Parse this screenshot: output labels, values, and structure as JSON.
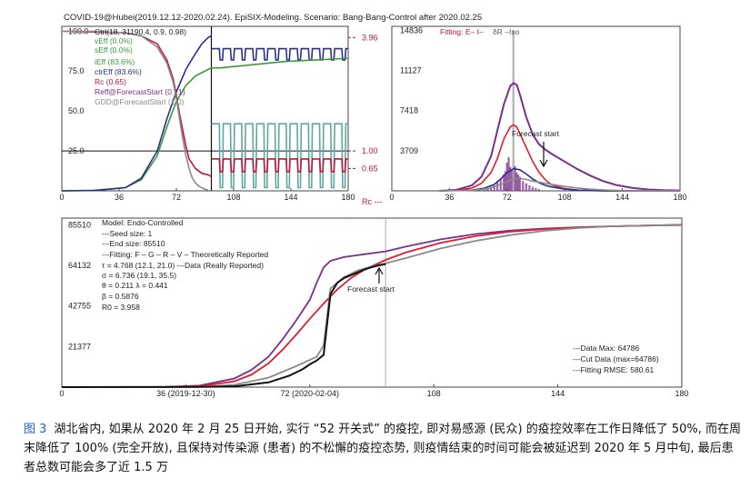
{
  "caption": {
    "label": "图 3",
    "text": "湖北省内, 如果从 2020 年 2 月 25 日开始, 实行 “52 开关式” 的疫控, 即对易感源 (民众) 的疫控效率在工作日降低了 50%, 而在周末降低了 100% (完全开放), 且保持对传染源 (患者) 的不松懈的疫控态势, 则疫情结束的时间可能会被延迟到 2020 年 5 月中旬, 最后患者总数可能会多了近 1.5 万"
  },
  "colors": {
    "purple": "#7b2f8e",
    "red": "#e01e2d",
    "blue": "#2b2f8f",
    "green": "#3a9a3a",
    "teal": "#5fa8a0",
    "crimson": "#c0143c",
    "gray": "#8a8a8a",
    "black": "#111111"
  },
  "chart_data": [
    {
      "type": "line",
      "title": "COVID-19@Hubei(2019.12.12-2020.02.24). EpiSIX-Modeling. Scenario: Bang-Bang-Control after 2020.02.25",
      "xlim": [
        0,
        180
      ],
      "x_ticks": [
        "0",
        "36",
        "72",
        "108",
        "144",
        "180"
      ],
      "ylim": [
        0,
        100
      ],
      "y_ticks": [
        "100.0",
        "75.0",
        "50.0",
        "25.0"
      ],
      "y2_ticks": [
        "3.96",
        "1.00",
        "0.65",
        "Rc ---"
      ],
      "legend": [
        "Ctrl(18, 31190.4, 0.9, 0.98)",
        "vEff (0.0%)",
        "sEff (0.0%)",
        "iEff (83.6%)",
        "ctrEff (83.6%)",
        "Rc (0.65)",
        "Reff@ForecastStart (0.71)",
        "GDD@ForecastStart (1.0)"
      ],
      "reference_lines": {
        "vertical_x": 94,
        "horizontal_y": 25.0
      },
      "series": [
        {
          "name": "iEff (83.6%)",
          "color": "green",
          "x": [
            0,
            20,
            40,
            50,
            60,
            66,
            72,
            78,
            84,
            88,
            92,
            94,
            100,
            110,
            120,
            130,
            140,
            150,
            160,
            170,
            180
          ],
          "y": [
            0,
            0.2,
            2,
            7,
            22,
            40,
            56,
            66,
            72,
            74,
            76,
            77,
            77,
            78,
            79,
            80,
            81,
            81.5,
            82,
            82.5,
            83
          ]
        },
        {
          "name": "ctrEff (83.6%)",
          "color": "blue",
          "x": [
            0,
            20,
            40,
            50,
            60,
            66,
            72,
            78,
            84,
            88,
            92,
            94
          ],
          "y": [
            0,
            0.2,
            2,
            8,
            25,
            45,
            62,
            76,
            86,
            92,
            96,
            97
          ]
        },
        {
          "name": "Rc (0.65)",
          "color": "crimson",
          "x": [
            0,
            20,
            40,
            50,
            60,
            66,
            70,
            72,
            74,
            76,
            78,
            80,
            84,
            88,
            92,
            94
          ],
          "y": [
            100,
            99.5,
            99,
            97,
            92,
            82,
            70,
            60,
            48,
            38,
            28,
            20,
            14,
            11,
            10,
            9
          ]
        },
        {
          "name": "GDD@ForecastStart (1.0)",
          "color": "gray",
          "x": [
            0,
            20,
            40,
            50,
            60,
            66,
            70,
            72,
            74,
            76,
            78,
            80,
            82,
            84,
            86,
            88,
            90,
            92
          ],
          "y": [
            100,
            99.8,
            99,
            97,
            90,
            80,
            68,
            58,
            45,
            33,
            22,
            14,
            8,
            5,
            3,
            2,
            1,
            0.5
          ]
        }
      ]
    },
    {
      "type": "line",
      "legend": [
        "Fitting: E– I–",
        "δR –Iso"
      ],
      "xlim": [
        0,
        180
      ],
      "x_ticks": [
        "0",
        "36",
        "72",
        "108",
        "144",
        "180"
      ],
      "ylim": [
        0,
        14836
      ],
      "y_ticks": [
        "14836",
        "11127",
        "7418",
        "3709"
      ],
      "annotation": "Forecast start",
      "series": [
        {
          "name": "E",
          "color": "purple",
          "x": [
            30,
            40,
            50,
            56,
            62,
            66,
            70,
            74,
            76,
            78,
            80,
            84,
            88,
            92,
            96,
            100,
            108,
            116,
            124,
            132,
            140,
            150,
            160,
            170,
            180
          ],
          "y": [
            0,
            80,
            500,
            1300,
            3200,
            5600,
            8000,
            9700,
            9950,
            9800,
            8900,
            6800,
            5200,
            4300,
            3800,
            3400,
            2700,
            2000,
            1400,
            900,
            550,
            280,
            130,
            60,
            30
          ]
        },
        {
          "name": "I",
          "color": "red",
          "x": [
            30,
            40,
            50,
            56,
            62,
            66,
            70,
            74,
            76,
            78,
            80,
            84,
            88,
            92,
            96,
            100,
            108,
            116,
            124,
            132,
            140,
            150,
            160,
            170,
            180
          ],
          "y": [
            0,
            40,
            250,
            700,
            1700,
            3000,
            4800,
            5900,
            6100,
            5900,
            5300,
            4000,
            2700,
            1700,
            1000,
            550,
            200,
            70,
            25,
            8,
            3,
            1,
            0,
            0,
            0
          ]
        },
        {
          "name": "Iso",
          "color": "blue",
          "x": [
            30,
            50,
            58,
            64,
            68,
            72,
            76,
            80,
            84,
            88,
            92,
            96,
            100,
            108,
            116,
            124,
            132,
            140,
            150,
            160,
            170,
            180
          ],
          "y": [
            0,
            60,
            250,
            600,
            1100,
            1700,
            2050,
            1950,
            1550,
            1100,
            750,
            500,
            350,
            160,
            70,
            30,
            10,
            4,
            1,
            0,
            0,
            0
          ]
        },
        {
          "name": "I",
          "color": "gray",
          "x": [
            30,
            50,
            60,
            70,
            76,
            80,
            84,
            88,
            92,
            100,
            108,
            116,
            124,
            132,
            140,
            150,
            160,
            170,
            180
          ],
          "y": [
            0,
            30,
            200,
            700,
            1100,
            1150,
            1050,
            900,
            800,
            600,
            400,
            260,
            150,
            80,
            40,
            15,
            5,
            2,
            0
          ]
        },
        {
          "name": "δR",
          "color": "purple",
          "type": "bar",
          "x": [
            58,
            60,
            62,
            64,
            66,
            68,
            70,
            71,
            72,
            73,
            74,
            75,
            76,
            77,
            78,
            79,
            80,
            82,
            84,
            86,
            88,
            90,
            92
          ],
          "y": [
            120,
            200,
            350,
            500,
            800,
            1100,
            1500,
            1800,
            2600,
            3100,
            2200,
            1900,
            14836,
            2300,
            1700,
            1500,
            1300,
            900,
            700,
            500,
            350,
            250,
            150
          ]
        }
      ]
    },
    {
      "type": "line",
      "xlim": [
        0,
        180
      ],
      "x_ticks": [
        "0",
        "36 (2019-12-30)",
        "72 (2020-02-04)",
        "108",
        "144",
        "180"
      ],
      "ylim": [
        0,
        85510
      ],
      "y_ticks": [
        "85510",
        "64132",
        "42755",
        "21377"
      ],
      "reference_lines": {
        "vertical_x": 94
      },
      "annotation": "Forecast start",
      "info_text": [
        "Model: Endo-Controlled",
        "---Seed size: 1",
        "---End size: 85510",
        "---Fitting: F – G – R – V – Theoretically Reported",
        "τ = 4.768 (12.1, 21.0)    ---Data (Really Reported)",
        "σ = 6.736 (19.1, 35.5)",
        "θ = 0.211   λ = 0.441",
        "β = 0.5876",
        "R0 = 3.958"
      ],
      "stats_text": [
        "---Data Max: 64786",
        "---Cut Data (max=64786)",
        "---Fitting RMSE: 580.61"
      ],
      "series": [
        {
          "name": "F",
          "color": "purple",
          "x": [
            0,
            30,
            40,
            50,
            55,
            60,
            64,
            68,
            72,
            74,
            76,
            78,
            82,
            88,
            94,
            100,
            110,
            120,
            130,
            140,
            150,
            160,
            170,
            180
          ],
          "y": [
            0,
            100,
            800,
            4500,
            9000,
            16000,
            25000,
            35000,
            46000,
            55000,
            63000,
            66500,
            68500,
            70000,
            71500,
            74000,
            77800,
            80600,
            82400,
            83500,
            84200,
            84700,
            85100,
            85510
          ]
        },
        {
          "name": "G",
          "color": "red",
          "x": [
            0,
            30,
            40,
            50,
            55,
            60,
            64,
            68,
            72,
            76,
            80,
            84,
            88,
            94,
            100,
            110,
            120,
            130,
            140,
            150,
            160,
            170,
            180
          ],
          "y": [
            0,
            50,
            500,
            3000,
            6500,
            12500,
            19500,
            27500,
            36000,
            44000,
            51500,
            57500,
            62000,
            67000,
            71000,
            76000,
            79500,
            81800,
            83200,
            84100,
            84700,
            85100,
            85300
          ]
        },
        {
          "name": "V",
          "color": "gray",
          "x": [
            0,
            30,
            40,
            50,
            60,
            68,
            74,
            76,
            78,
            82,
            86,
            90,
            94,
            100,
            110,
            120,
            130,
            140,
            150,
            160,
            170,
            180
          ],
          "y": [
            0,
            20,
            200,
            1200,
            5000,
            11000,
            16000,
            22000,
            52000,
            58000,
            61500,
            63500,
            65200,
            68000,
            73000,
            77000,
            80000,
            82300,
            83800,
            84700,
            85100,
            85300
          ]
        },
        {
          "name": "Data (Really Reported)",
          "color": "black",
          "x": [
            0,
            40,
            50,
            60,
            66,
            70,
            72,
            74,
            76,
            78,
            80,
            82,
            84,
            86,
            88,
            90,
            92,
            94
          ],
          "y": [
            0,
            100,
            400,
            2500,
            6000,
            9500,
            12000,
            14000,
            17000,
            49000,
            55000,
            57500,
            59000,
            60500,
            62000,
            63200,
            64100,
            64786
          ]
        }
      ]
    }
  ]
}
